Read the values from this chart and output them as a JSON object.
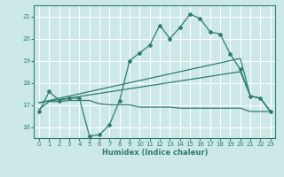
{
  "bg_color": "#cde8e8",
  "grid_color": "#ffffff",
  "line_color": "#2e7d6e",
  "xlabel": "Humidex (Indice chaleur)",
  "xlim": [
    -0.5,
    23.5
  ],
  "ylim": [
    15.5,
    21.5
  ],
  "yticks": [
    16,
    17,
    18,
    19,
    20,
    21
  ],
  "xticks": [
    0,
    1,
    2,
    3,
    4,
    5,
    6,
    7,
    8,
    9,
    10,
    11,
    12,
    13,
    14,
    15,
    16,
    17,
    18,
    19,
    20,
    21,
    22,
    23
  ],
  "curve1_x": [
    0,
    1,
    2,
    3,
    4,
    5,
    6,
    7,
    8,
    9,
    10,
    11,
    12,
    13,
    14,
    15,
    16,
    17,
    18,
    19,
    20,
    21,
    22,
    23
  ],
  "curve1_y": [
    16.7,
    17.6,
    17.2,
    17.3,
    17.3,
    15.6,
    15.65,
    16.1,
    17.2,
    19.0,
    19.35,
    19.7,
    20.6,
    20.0,
    20.5,
    21.1,
    20.9,
    20.3,
    20.2,
    19.3,
    18.6,
    17.4,
    17.3,
    16.7
  ],
  "curve2_x": [
    0,
    19,
    20,
    21,
    22,
    23
  ],
  "curve2_y": [
    17.1,
    19.0,
    19.1,
    17.4,
    17.3,
    16.7
  ],
  "curve3_x": [
    0,
    20,
    21,
    22,
    23
  ],
  "curve3_y": [
    17.1,
    18.5,
    17.4,
    17.3,
    16.7
  ],
  "curve4_x": [
    0,
    1,
    2,
    3,
    4,
    5,
    6,
    7,
    8,
    9,
    10,
    11,
    12,
    13,
    14,
    15,
    16,
    17,
    18,
    19,
    20,
    21,
    22,
    23
  ],
  "curve4_y": [
    16.8,
    17.15,
    17.15,
    17.2,
    17.2,
    17.2,
    17.05,
    17.0,
    17.0,
    17.0,
    16.9,
    16.9,
    16.9,
    16.9,
    16.85,
    16.85,
    16.85,
    16.85,
    16.85,
    16.85,
    16.85,
    16.7,
    16.7,
    16.7
  ],
  "lw": 0.9,
  "marker_size": 2.0
}
